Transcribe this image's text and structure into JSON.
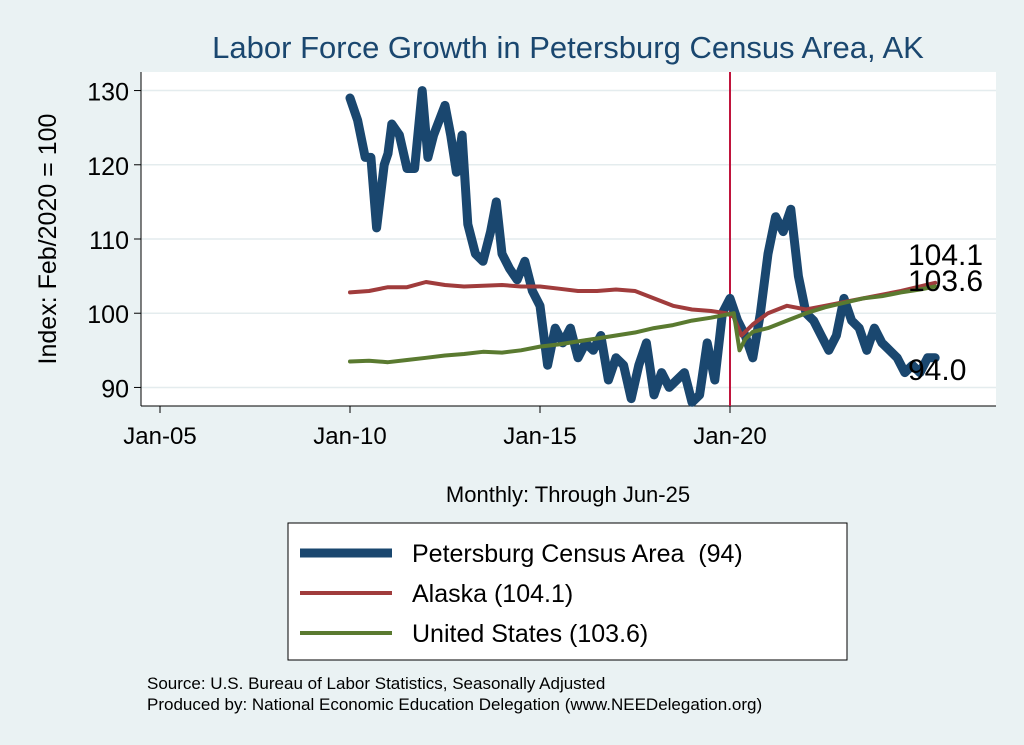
{
  "chart_data": {
    "type": "line",
    "title": "Labor Force Growth in Petersburg Census Area, AK",
    "ylabel": "Index: Feb/2020 = 100",
    "xlabel": "Monthly: Through Jun-25",
    "xlim": [
      2004.5,
      2027.0
    ],
    "ylim": [
      87.5,
      132.5
    ],
    "y_ticks": [
      90,
      100,
      110,
      120,
      130
    ],
    "y_tick_labels": [
      "90",
      "100",
      "110",
      "120",
      "130"
    ],
    "x_ticks": [
      2005,
      2010,
      2015,
      2020
    ],
    "x_tick_labels": [
      "Jan-05",
      "Jan-10",
      "Jan-15",
      "Jan-20"
    ],
    "reference_line_x": 2020.0,
    "grid": true,
    "legend_position": "bottom",
    "series": [
      {
        "name": "Petersburg Census Area",
        "legend_label": "Petersburg Census Area  (94)",
        "color": "#1a476f",
        "end_label": "94.0",
        "x": [
          2010.0,
          2010.2,
          2010.4,
          2010.55,
          2010.7,
          2010.9,
          2011.0,
          2011.1,
          2011.3,
          2011.5,
          2011.7,
          2011.9,
          2012.05,
          2012.2,
          2012.35,
          2012.5,
          2012.65,
          2012.8,
          2012.95,
          2013.1,
          2013.3,
          2013.5,
          2013.7,
          2013.85,
          2014.0,
          2014.2,
          2014.4,
          2014.6,
          2014.8,
          2015.0,
          2015.2,
          2015.4,
          2015.6,
          2015.8,
          2016.0,
          2016.2,
          2016.4,
          2016.6,
          2016.8,
          2017.0,
          2017.2,
          2017.4,
          2017.6,
          2017.8,
          2018.0,
          2018.2,
          2018.4,
          2018.6,
          2018.8,
          2019.0,
          2019.2,
          2019.4,
          2019.6,
          2019.8,
          2020.0,
          2020.2,
          2020.4,
          2020.6,
          2020.8,
          2021.0,
          2021.2,
          2021.4,
          2021.6,
          2021.8,
          2022.0,
          2022.2,
          2022.4,
          2022.6,
          2022.8,
          2023.0,
          2023.2,
          2023.4,
          2023.6,
          2023.8,
          2024.0,
          2024.2,
          2024.4,
          2024.6,
          2024.8,
          2025.0,
          2025.2,
          2025.4
        ],
        "y": [
          129.0,
          126.0,
          121.0,
          121.0,
          111.5,
          120.0,
          121.5,
          125.5,
          124.0,
          119.5,
          119.5,
          130.0,
          121.0,
          124.0,
          126.0,
          128.0,
          124.0,
          119.0,
          124.0,
          112.0,
          108.0,
          107.0,
          111.0,
          115.0,
          108.0,
          106.0,
          104.5,
          107.0,
          103.0,
          101.0,
          93.0,
          98.0,
          96.0,
          98.0,
          94.0,
          96.0,
          95.0,
          97.0,
          91.0,
          94.0,
          93.0,
          88.5,
          93.0,
          96.0,
          89.0,
          92.0,
          90.0,
          91.0,
          92.0,
          88.0,
          89.0,
          96.0,
          91.0,
          100.0,
          102.0,
          99.0,
          97.0,
          94.0,
          100.0,
          108.0,
          113.0,
          111.0,
          114.0,
          105.0,
          100.0,
          99.0,
          97.0,
          95.0,
          97.0,
          102.0,
          99.0,
          98.0,
          95.0,
          98.0,
          96.0,
          95.0,
          94.0,
          92.0,
          93.0,
          92.0,
          94.0,
          94.0
        ]
      },
      {
        "name": "Alaska",
        "legend_label": "Alaska (104.1)",
        "color": "#a03c3c",
        "end_label": "104.1",
        "x": [
          2010.0,
          2010.5,
          2011.0,
          2011.5,
          2012.0,
          2012.5,
          2013.0,
          2013.5,
          2014.0,
          2014.5,
          2015.0,
          2015.5,
          2016.0,
          2016.5,
          2017.0,
          2017.5,
          2018.0,
          2018.5,
          2019.0,
          2019.5,
          2019.9,
          2020.1,
          2020.3,
          2020.6,
          2021.0,
          2021.5,
          2022.0,
          2022.5,
          2023.0,
          2023.5,
          2024.0,
          2024.5,
          2025.0,
          2025.4
        ],
        "y": [
          102.8,
          103.0,
          103.5,
          103.5,
          104.2,
          103.8,
          103.6,
          103.7,
          103.8,
          103.6,
          103.6,
          103.3,
          103.0,
          103.0,
          103.2,
          103.0,
          102.0,
          101.0,
          100.5,
          100.3,
          100.0,
          99.5,
          97.0,
          98.5,
          100.0,
          101.0,
          100.5,
          101.0,
          101.5,
          102.0,
          102.5,
          103.0,
          103.6,
          104.1
        ]
      },
      {
        "name": "United States",
        "legend_label": "United States (103.6)",
        "color": "#5a7a30",
        "end_label": "103.6",
        "x": [
          2010.0,
          2010.5,
          2011.0,
          2011.5,
          2012.0,
          2012.5,
          2013.0,
          2013.5,
          2014.0,
          2014.5,
          2015.0,
          2015.5,
          2016.0,
          2016.5,
          2017.0,
          2017.5,
          2018.0,
          2018.5,
          2019.0,
          2019.5,
          2019.9,
          2020.1,
          2020.25,
          2020.4,
          2020.6,
          2021.0,
          2021.5,
          2022.0,
          2022.5,
          2023.0,
          2023.5,
          2024.0,
          2024.5,
          2025.0,
          2025.4
        ],
        "y": [
          93.5,
          93.6,
          93.4,
          93.7,
          94.0,
          94.3,
          94.5,
          94.8,
          94.7,
          95.0,
          95.5,
          95.8,
          96.2,
          96.6,
          97.0,
          97.4,
          98.0,
          98.4,
          99.0,
          99.4,
          99.8,
          100.0,
          95.0,
          96.5,
          97.5,
          98.0,
          99.0,
          100.0,
          100.8,
          101.4,
          102.0,
          102.3,
          102.8,
          103.2,
          103.6
        ]
      }
    ],
    "notes": [
      "Source: U.S. Bureau of Labor Statistics, Seasonally Adjusted",
      "Produced by: National Economic Education Delegation (www.NEEDelegation.org)"
    ]
  }
}
